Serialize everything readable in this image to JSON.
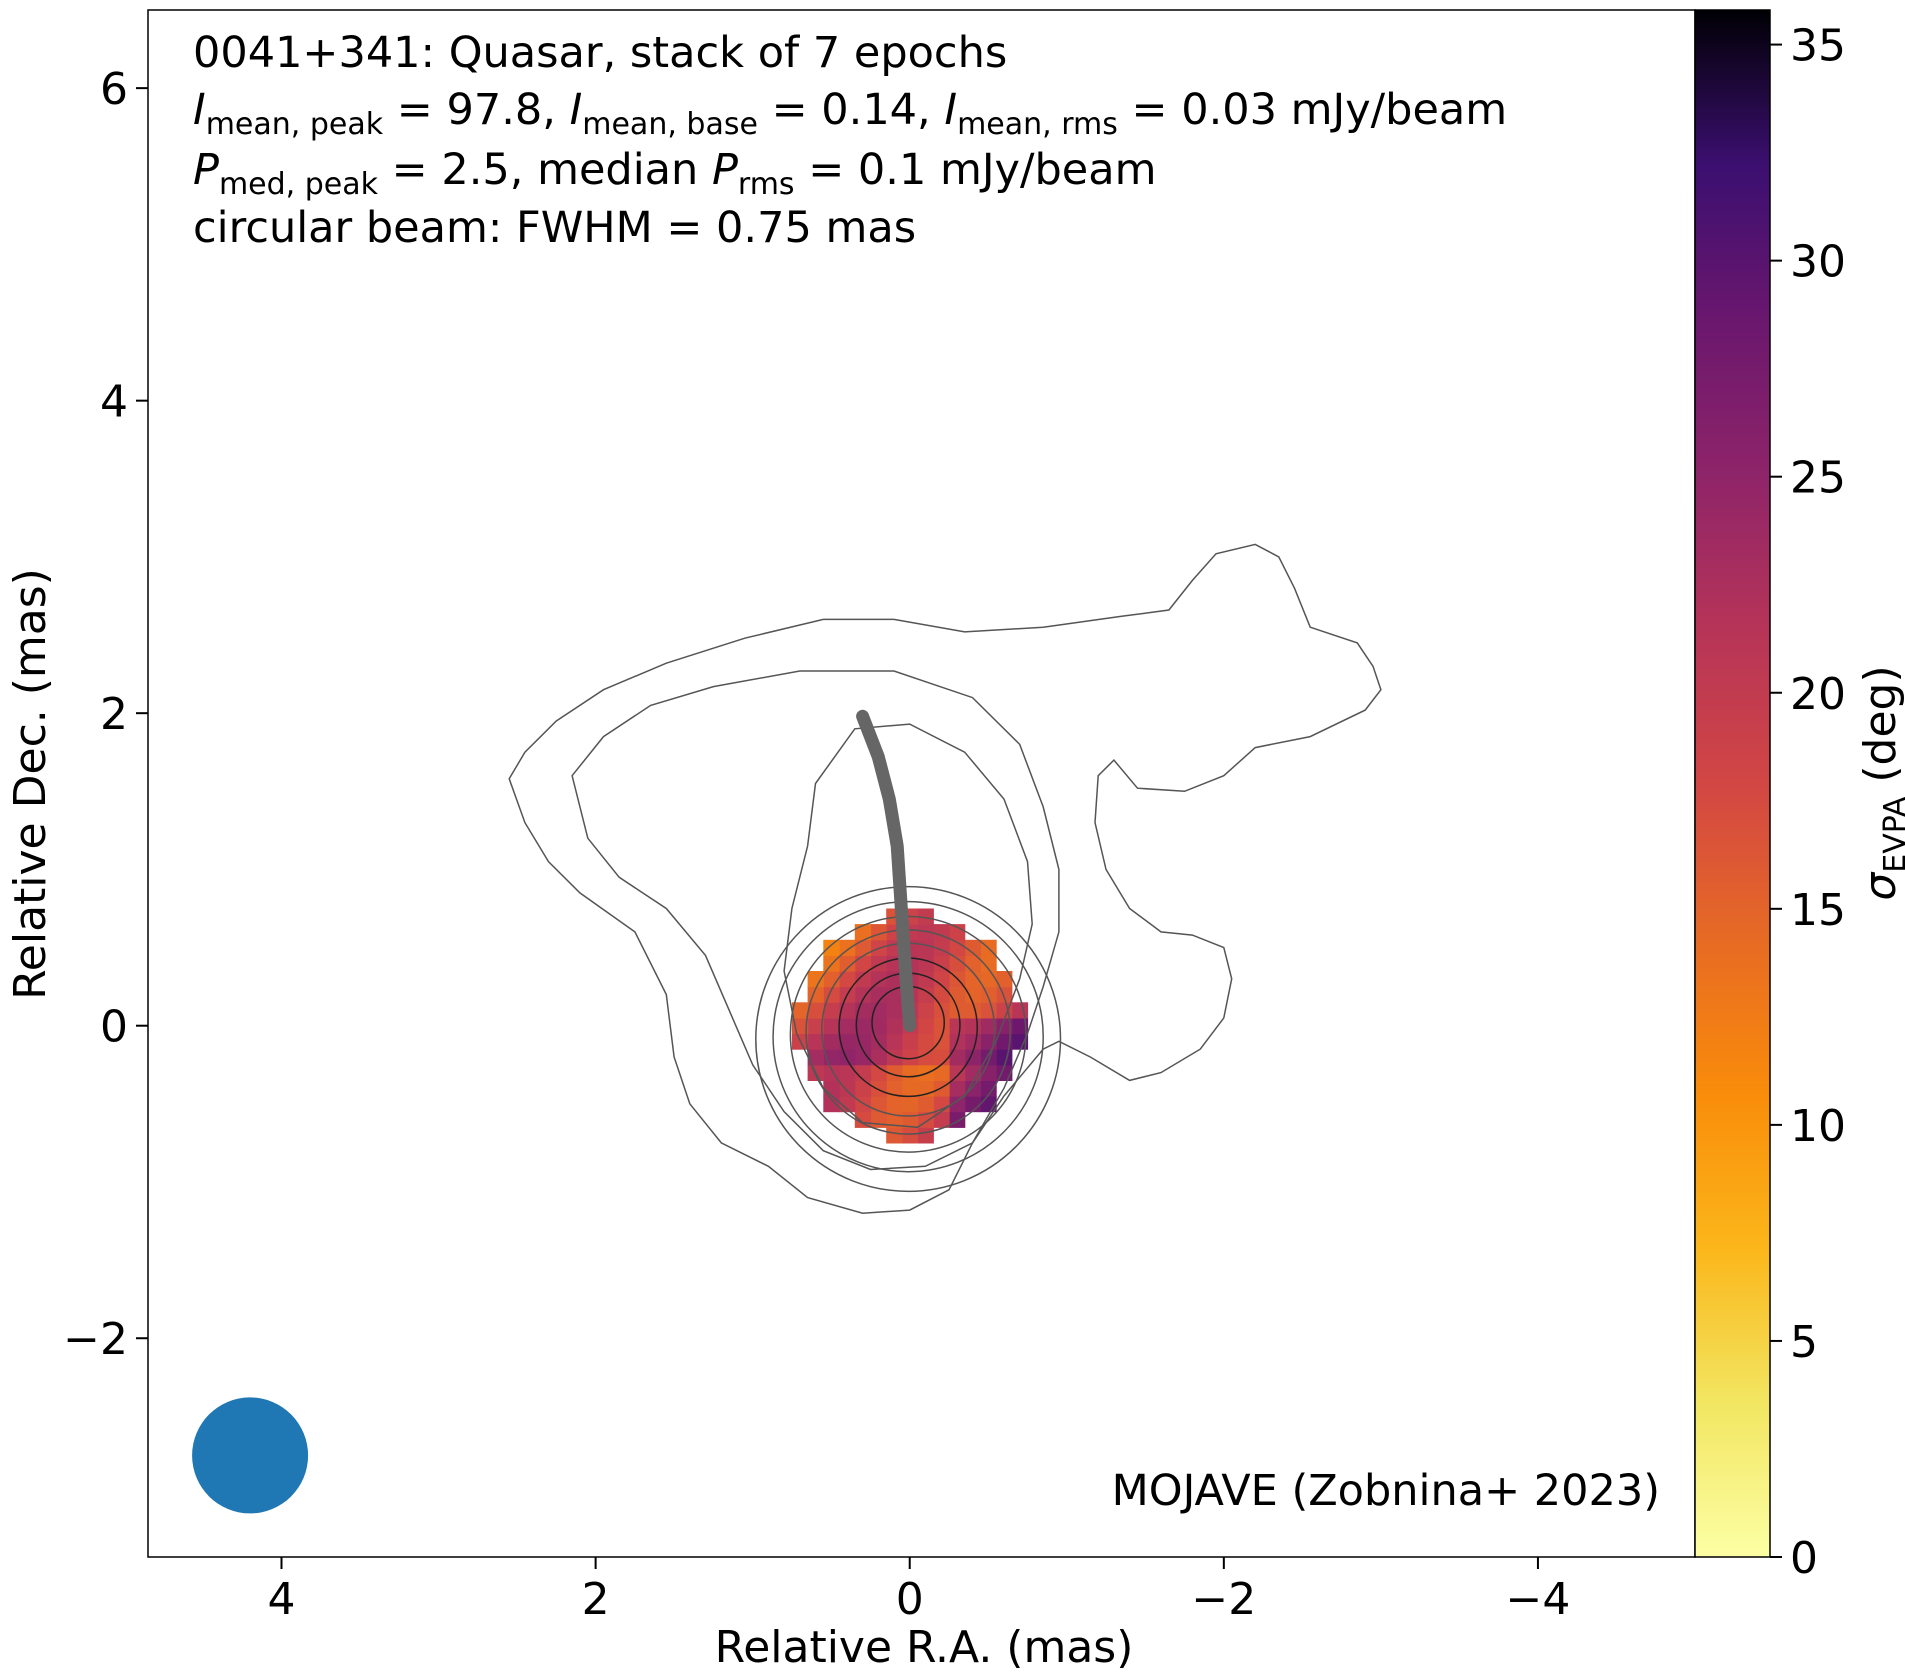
{
  "chart_data": {
    "type": "image",
    "source": "0041+341",
    "title_lines": [
      "0041+341: Quasar, stack of 7 epochs",
      "I_mean,peak = 97.8, I_mean,base = 0.14, I_mean,rms = 0.03 mJy/beam",
      "P_med,peak = 2.5, median P_rms = 0.1 mJy/beam",
      "circular beam: FWHM = 0.75 mas"
    ],
    "header": {
      "line1": "0041+341: Quasar, stack of 7 epochs",
      "line2": {
        "s1": " = 97.8, ",
        "s2": " = 0.14, ",
        "s3": " = 0.03 mJy/beam",
        "sub1": "mean, peak",
        "sub2": "mean, base",
        "sub3": "mean, rms",
        "sym": "I"
      },
      "line3": {
        "sym": "P",
        "sub1": "med, peak",
        "s1": " = 2.5, median ",
        "sub2": "rms",
        "s2": " = 0.1 mJy/beam"
      },
      "line4": "circular beam: FWHM = 0.75 mas"
    },
    "credit": "MOJAVE (Zobnina+ 2023)",
    "xlabel": "Relative R.A. (mas)",
    "ylabel": "Relative Dec. (mas)",
    "xlim": [
      4.85,
      -5.0
    ],
    "ylim": [
      -3.4,
      6.5
    ],
    "x_inverted": true,
    "x_ticks": [
      4,
      2,
      0,
      -2,
      -4
    ],
    "y_ticks": [
      -2,
      0,
      2,
      4,
      6
    ],
    "x_tick_labels": [
      "4",
      "2",
      "0",
      "−2",
      "−4"
    ],
    "y_tick_labels": [
      "−2",
      "0",
      "2",
      "4",
      "6"
    ],
    "colorbar": {
      "label": "σ",
      "label_sub": "EVPA",
      "label_unit": " (deg)",
      "range": [
        0,
        35.8
      ],
      "ticks": [
        0,
        5,
        10,
        15,
        20,
        25,
        30,
        35
      ],
      "tick_labels": [
        "0",
        "5",
        "10",
        "15",
        "20",
        "25",
        "30",
        "35"
      ],
      "colormap": "inferno_r"
    },
    "beam": {
      "shape": "circle",
      "fwhm_mas": 0.75,
      "center": [
        4.2,
        -2.75
      ],
      "color": "#1f77b4"
    },
    "ridge_line": {
      "color": "#666666",
      "points": [
        [
          0.0,
          0.0
        ],
        [
          0.02,
          0.25
        ],
        [
          0.04,
          0.55
        ],
        [
          0.06,
          0.85
        ],
        [
          0.08,
          1.15
        ],
        [
          0.13,
          1.45
        ],
        [
          0.2,
          1.72
        ],
        [
          0.3,
          1.98
        ]
      ]
    },
    "contours": [
      [
        [
          2.55,
          1.58
        ],
        [
          2.45,
          1.75
        ],
        [
          2.25,
          1.95
        ],
        [
          1.95,
          2.15
        ],
        [
          1.55,
          2.32
        ],
        [
          1.05,
          2.48
        ],
        [
          0.55,
          2.6
        ],
        [
          0.1,
          2.6
        ],
        [
          -0.35,
          2.52
        ],
        [
          -0.85,
          2.55
        ],
        [
          -1.35,
          2.62
        ],
        [
          -1.65,
          2.66
        ],
        [
          -1.8,
          2.85
        ],
        [
          -1.95,
          3.02
        ],
        [
          -2.2,
          3.08
        ],
        [
          -2.35,
          3.0
        ],
        [
          -2.45,
          2.8
        ],
        [
          -2.55,
          2.55
        ],
        [
          -2.85,
          2.45
        ],
        [
          -2.95,
          2.3
        ],
        [
          -3.0,
          2.15
        ],
        [
          -2.9,
          2.02
        ],
        [
          -2.55,
          1.85
        ],
        [
          -2.2,
          1.78
        ],
        [
          -2.0,
          1.6
        ],
        [
          -1.75,
          1.5
        ],
        [
          -1.45,
          1.52
        ],
        [
          -1.3,
          1.7
        ],
        [
          -1.2,
          1.6
        ],
        [
          -1.18,
          1.3
        ],
        [
          -1.25,
          1.0
        ],
        [
          -1.4,
          0.75
        ],
        [
          -1.6,
          0.6
        ],
        [
          -1.8,
          0.58
        ],
        [
          -2.0,
          0.5
        ],
        [
          -2.05,
          0.3
        ],
        [
          -2.0,
          0.05
        ],
        [
          -1.85,
          -0.15
        ],
        [
          -1.6,
          -0.3
        ],
        [
          -1.4,
          -0.35
        ],
        [
          -1.15,
          -0.2
        ],
        [
          -0.95,
          -0.1
        ],
        [
          -0.85,
          -0.15
        ],
        [
          -0.6,
          -0.45
        ],
        [
          -0.4,
          -0.75
        ],
        [
          -0.25,
          -1.05
        ],
        [
          0.0,
          -1.18
        ],
        [
          0.3,
          -1.2
        ],
        [
          0.65,
          -1.1
        ],
        [
          0.9,
          -0.9
        ],
        [
          1.2,
          -0.75
        ],
        [
          1.4,
          -0.5
        ],
        [
          1.5,
          -0.2
        ],
        [
          1.55,
          0.2
        ],
        [
          1.75,
          0.6
        ],
        [
          2.1,
          0.85
        ],
        [
          2.3,
          1.05
        ],
        [
          2.45,
          1.3
        ],
        [
          2.55,
          1.58
        ]
      ],
      [
        [
          2.15,
          1.6
        ],
        [
          1.95,
          1.85
        ],
        [
          1.65,
          2.05
        ],
        [
          1.25,
          2.17
        ],
        [
          0.7,
          2.27
        ],
        [
          0.1,
          2.27
        ],
        [
          -0.4,
          2.1
        ],
        [
          -0.7,
          1.8
        ],
        [
          -0.85,
          1.4
        ],
        [
          -0.95,
          1.0
        ],
        [
          -0.95,
          0.6
        ],
        [
          -0.85,
          0.25
        ],
        [
          -0.75,
          -0.05
        ],
        [
          -0.6,
          -0.4
        ],
        [
          -0.4,
          -0.75
        ],
        [
          -0.1,
          -0.9
        ],
        [
          0.25,
          -0.92
        ],
        [
          0.55,
          -0.8
        ],
        [
          0.8,
          -0.55
        ],
        [
          1.0,
          -0.25
        ],
        [
          1.15,
          0.1
        ],
        [
          1.3,
          0.45
        ],
        [
          1.55,
          0.75
        ],
        [
          1.85,
          0.95
        ],
        [
          2.05,
          1.2
        ],
        [
          2.15,
          1.6
        ]
      ],
      [
        [
          0.6,
          1.55
        ],
        [
          0.35,
          1.9
        ],
        [
          0.0,
          1.93
        ],
        [
          -0.35,
          1.75
        ],
        [
          -0.6,
          1.45
        ],
        [
          -0.75,
          1.05
        ],
        [
          -0.78,
          0.65
        ],
        [
          -0.7,
          0.3
        ],
        [
          -0.55,
          -0.1
        ],
        [
          -0.35,
          -0.45
        ],
        [
          -0.05,
          -0.65
        ],
        [
          0.3,
          -0.62
        ],
        [
          0.55,
          -0.4
        ],
        [
          0.72,
          -0.05
        ],
        [
          0.8,
          0.35
        ],
        [
          0.75,
          0.75
        ],
        [
          0.65,
          1.15
        ],
        [
          0.6,
          1.55
        ]
      ]
    ],
    "circular_contour_radii": [
      0.23,
      0.33,
      0.44,
      0.55,
      0.65,
      0.75,
      0.86,
      0.97
    ],
    "ridge_color": "#666666"
  }
}
